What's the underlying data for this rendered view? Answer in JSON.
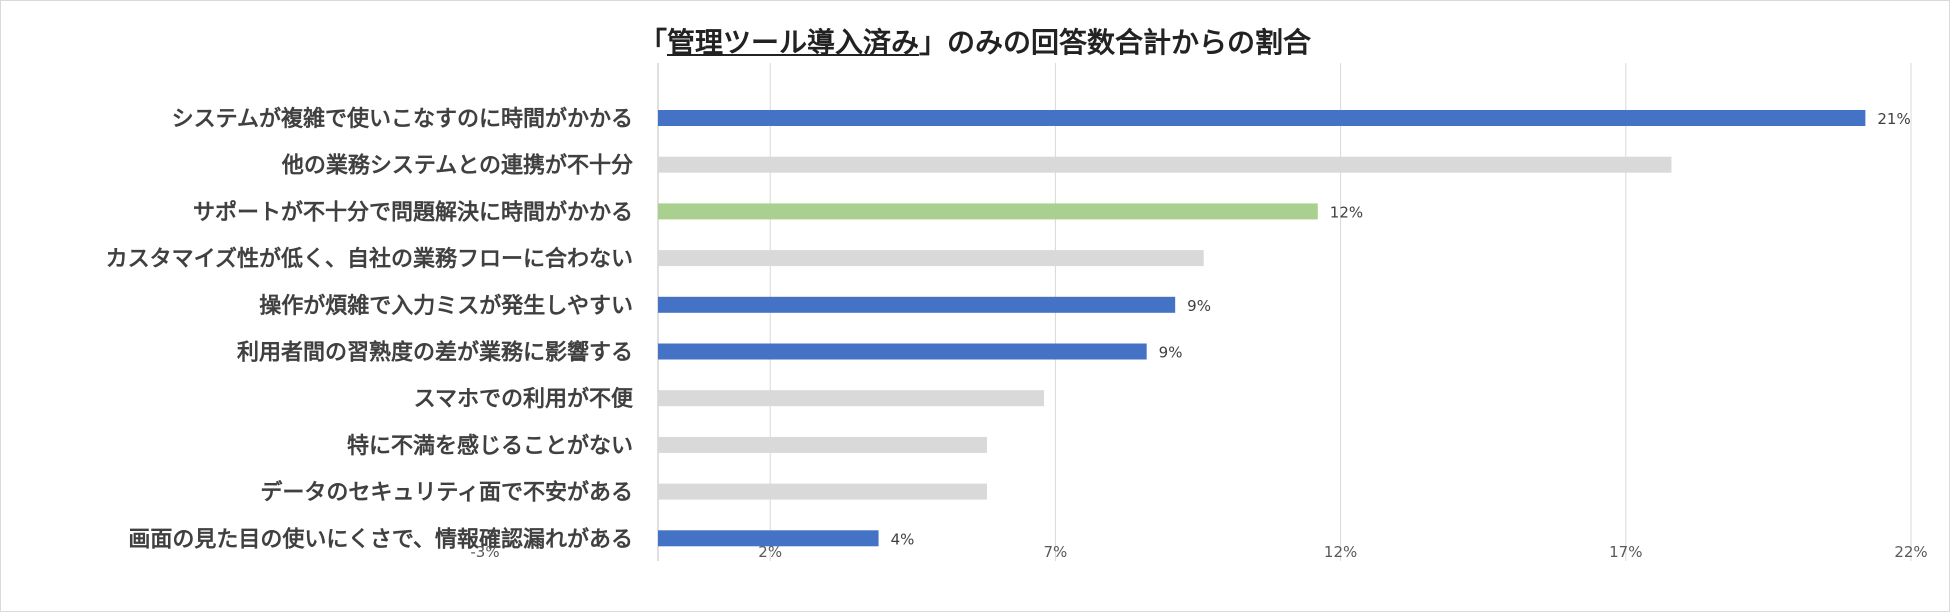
{
  "chart_data": {
    "type": "bar",
    "orientation": "horizontal",
    "title_prefix": "「",
    "title_underlined": "管理ツール導入済み",
    "title_suffix": "」のみの回答数合計からの割合",
    "categories": [
      "システムが複雑で使いこなすのに時間がかかる",
      "他の業務システムとの連携が不十分",
      "サポートが不十分で問題解決に時間がかかる",
      "カスタマイズ性が低く、自社の業務フローに合わない",
      "操作が煩雑で入力ミスが発生しやすい",
      "利用者間の習熟度の差が業務に影響する",
      "スマホでの利用が不便",
      "特に不満を感じることがない",
      "データのセキュリティ面で不安がある",
      "画面の見た目の使いにくさで、情報確認漏れがある"
    ],
    "values": [
      21.2,
      17.8,
      11.6,
      9.6,
      9.1,
      8.6,
      6.8,
      5.8,
      5.8,
      3.9
    ],
    "data_labels": [
      "21%",
      "",
      "12%",
      "",
      "9%",
      "9%",
      "",
      "",
      "",
      "4%"
    ],
    "bar_colors": [
      "#4472c4",
      "#d9d9d9",
      "#a9d08e",
      "#d9d9d9",
      "#4472c4",
      "#4472c4",
      "#d9d9d9",
      "#d9d9d9",
      "#d9d9d9",
      "#4472c4"
    ],
    "xlim": [
      -3,
      22
    ],
    "xticks": [
      -3,
      2,
      7,
      12,
      17,
      22
    ],
    "xtick_labels": [
      "-3%",
      "2%",
      "7%",
      "12%",
      "17%",
      "22%"
    ],
    "grid": true,
    "xlabel": "",
    "ylabel": ""
  }
}
